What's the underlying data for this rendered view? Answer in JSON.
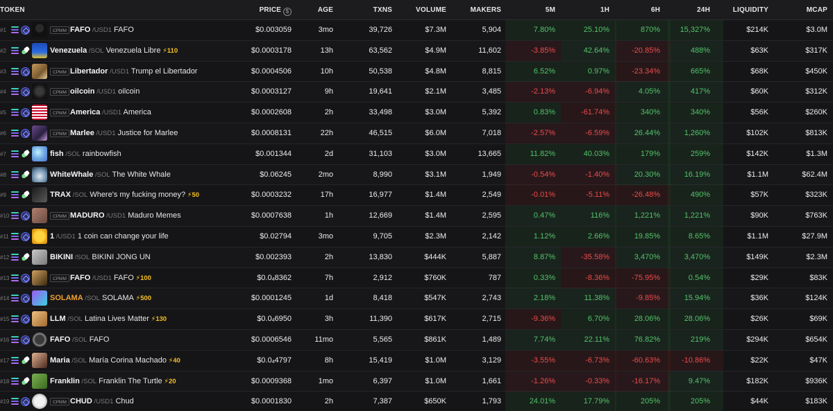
{
  "headers": {
    "token": "TOKEN",
    "price": "PRICE",
    "age": "AGE",
    "txns": "TXNS",
    "volume": "VOLUME",
    "makers": "MAKERS",
    "m5": "5M",
    "h1": "1H",
    "h6": "6H",
    "h24": "24H",
    "liquidity": "LIQUIDITY",
    "mcap": "MCAP"
  },
  "colors": {
    "positive": "#53c46a",
    "negative": "#ef4b4b",
    "boost": "#f5c023",
    "highlight_symbol": "#f0a030"
  },
  "rows": [
    {
      "rank": "#1",
      "dex": "raydium-icon",
      "cpmm": "CPMM",
      "symbol": "FAFO",
      "pair": "USD1",
      "name": "FAFO",
      "boost": "",
      "price": "$0.003059",
      "age": "3mo",
      "txns": "39,726",
      "volume": "$7.3M",
      "makers": "5,904",
      "m5": "7.80%",
      "h1": "25.10%",
      "h6": "870%",
      "h24": "15,327%",
      "liquidity": "$214K",
      "mcap": "$3.0M",
      "avatar": "fafo-hat-avatar"
    },
    {
      "rank": "#2",
      "dex": "pumpfun-icon",
      "cpmm": "",
      "symbol": "Venezuela",
      "pair": "SOL",
      "name": "Venezuela Libre",
      "boost": "110",
      "price": "$0.0003178",
      "age": "13h",
      "txns": "63,562",
      "volume": "$4.9M",
      "makers": "11,602",
      "m5": "-3.85%",
      "h1": "42.64%",
      "h6": "-20.85%",
      "h24": "488%",
      "liquidity": "$63K",
      "mcap": "$317K",
      "avatar": "venezuela-avatar"
    },
    {
      "rank": "#3",
      "dex": "raydium-icon",
      "cpmm": "CPMM",
      "symbol": "Libertador",
      "pair": "USD1",
      "name": "Trump el Libertador",
      "boost": "",
      "price": "$0.0004506",
      "age": "10h",
      "txns": "50,538",
      "volume": "$4.8M",
      "makers": "8,815",
      "m5": "6.52%",
      "h1": "0.97%",
      "h6": "-23.34%",
      "h24": "665%",
      "liquidity": "$68K",
      "mcap": "$450K",
      "avatar": "libertador-avatar"
    },
    {
      "rank": "#4",
      "dex": "raydium-icon",
      "cpmm": "CPMM",
      "symbol": "oilcoin",
      "pair": "USD1",
      "name": "oilcoin",
      "boost": "",
      "price": "$0.0003127",
      "age": "9h",
      "txns": "19,641",
      "volume": "$2.1M",
      "makers": "3,485",
      "m5": "-2.13%",
      "h1": "-6.94%",
      "h6": "4.05%",
      "h24": "417%",
      "liquidity": "$60K",
      "mcap": "$312K",
      "avatar": "oilcoin-avatar"
    },
    {
      "rank": "#5",
      "dex": "raydium-icon",
      "cpmm": "CPMM",
      "symbol": "America",
      "pair": "USD1",
      "name": "America",
      "boost": "",
      "price": "$0.0002608",
      "age": "2h",
      "txns": "33,498",
      "volume": "$3.0M",
      "makers": "5,392",
      "m5": "0.83%",
      "h1": "-61.74%",
      "h6": "340%",
      "h24": "340%",
      "liquidity": "$56K",
      "mcap": "$260K",
      "avatar": "us-flag-avatar"
    },
    {
      "rank": "#6",
      "dex": "raydium-icon",
      "cpmm": "CPMM",
      "symbol": "Marlee",
      "pair": "USD1",
      "name": "Justice for Marlee",
      "boost": "",
      "price": "$0.0008131",
      "age": "22h",
      "txns": "46,515",
      "volume": "$6.0M",
      "makers": "7,018",
      "m5": "-2.57%",
      "h1": "-6.59%",
      "h6": "26.44%",
      "h24": "1,260%",
      "liquidity": "$102K",
      "mcap": "$813K",
      "avatar": "marlee-avatar"
    },
    {
      "rank": "#7",
      "dex": "pumpfun-icon",
      "cpmm": "",
      "symbol": "fish",
      "pair": "SOL",
      "name": "rainbowfish",
      "boost": "",
      "price": "$0.001344",
      "age": "2d",
      "txns": "31,103",
      "volume": "$3.0M",
      "makers": "13,665",
      "m5": "11.82%",
      "h1": "40.03%",
      "h6": "179%",
      "h24": "259%",
      "liquidity": "$142K",
      "mcap": "$1.3M",
      "avatar": "fish-avatar"
    },
    {
      "rank": "#8",
      "dex": "pumpfun-icon",
      "cpmm": "",
      "symbol": "WhiteWhale",
      "pair": "SOL",
      "name": "The White Whale",
      "boost": "",
      "price": "$0.06245",
      "age": "2mo",
      "txns": "8,990",
      "volume": "$3.1M",
      "makers": "1,949",
      "m5": "-0.54%",
      "h1": "-1.40%",
      "h6": "20.30%",
      "h24": "16.19%",
      "liquidity": "$1.1M",
      "mcap": "$62.4M",
      "avatar": "whale-avatar"
    },
    {
      "rank": "#9",
      "dex": "pumpfun-icon",
      "cpmm": "",
      "symbol": "TRAX",
      "pair": "SOL",
      "name": "Where's my fucking money?",
      "boost": "50",
      "price": "$0.0003232",
      "age": "17h",
      "txns": "16,977",
      "volume": "$1.4M",
      "makers": "2,549",
      "m5": "-0.01%",
      "h1": "-5.11%",
      "h6": "-26.48%",
      "h24": "490%",
      "liquidity": "$57K",
      "mcap": "$323K",
      "avatar": "trax-avatar"
    },
    {
      "rank": "#10",
      "dex": "raydium-icon",
      "cpmm": "CPMM",
      "symbol": "MADURO",
      "pair": "USD1",
      "name": "Maduro Memes",
      "boost": "",
      "price": "$0.0007638",
      "age": "1h",
      "txns": "12,669",
      "volume": "$1.4M",
      "makers": "2,595",
      "m5": "0.47%",
      "h1": "116%",
      "h6": "1,221%",
      "h24": "1,221%",
      "liquidity": "$90K",
      "mcap": "$763K",
      "avatar": "maduro-avatar"
    },
    {
      "rank": "#11",
      "dex": "raydium-icon",
      "cpmm": "",
      "symbol": "1",
      "pair": "USD1",
      "name": "1 coin can change your life",
      "boost": "",
      "price": "$0.02794",
      "age": "3mo",
      "txns": "9,705",
      "volume": "$2.3M",
      "makers": "2,142",
      "m5": "1.12%",
      "h1": "2.66%",
      "h6": "19.85%",
      "h24": "8.65%",
      "liquidity": "$1.1M",
      "mcap": "$27.9M",
      "avatar": "coin-avatar"
    },
    {
      "rank": "#12",
      "dex": "pumpfun-icon",
      "cpmm": "",
      "symbol": "BIKINI",
      "pair": "SOL",
      "name": "BIKINI JONG UN",
      "boost": "",
      "price": "$0.002393",
      "age": "2h",
      "txns": "13,830",
      "volume": "$444K",
      "makers": "5,887",
      "m5": "8.87%",
      "h1": "-35.58%",
      "h6": "3,470%",
      "h24": "3,470%",
      "liquidity": "$149K",
      "mcap": "$2.3M",
      "avatar": "bikini-avatar"
    },
    {
      "rank": "#13",
      "dex": "raydium-icon",
      "cpmm": "CPMM",
      "symbol": "FAFO",
      "pair": "USD1",
      "name": "FAFO",
      "boost": "100",
      "price_pre": "$0.0",
      "price_sub": "4",
      "price_post": "8362",
      "price": "",
      "age": "7h",
      "txns": "2,912",
      "volume": "$760K",
      "makers": "787",
      "m5": "0.33%",
      "h1": "-8.36%",
      "h6": "-75.95%",
      "h24": "0.54%",
      "liquidity": "$29K",
      "mcap": "$83K",
      "avatar": "fafo2-avatar"
    },
    {
      "rank": "#14",
      "dex": "raydium-icon",
      "cpmm": "",
      "symbol": "SOLAMA",
      "pair": "SOL",
      "name": "SOLAMA",
      "boost": "500",
      "price": "$0.0001245",
      "age": "1d",
      "txns": "8,418",
      "volume": "$547K",
      "makers": "2,743",
      "m5": "2.18%",
      "h1": "11.38%",
      "h6": "-9.85%",
      "h24": "15.94%",
      "liquidity": "$36K",
      "mcap": "$124K",
      "avatar": "solama-avatar",
      "orange": true
    },
    {
      "rank": "#15",
      "dex": "raydium-icon",
      "cpmm": "",
      "symbol": "LLM",
      "pair": "SOL",
      "name": "Latina Lives Matter",
      "boost": "130",
      "price_pre": "$0.0",
      "price_sub": "4",
      "price_post": "6950",
      "price": "",
      "age": "3h",
      "txns": "11,390",
      "volume": "$617K",
      "makers": "2,715",
      "m5": "-9.36%",
      "h1": "6.70%",
      "h6": "28.06%",
      "h24": "28.06%",
      "liquidity": "$26K",
      "mcap": "$69K",
      "avatar": "llm-avatar"
    },
    {
      "rank": "#16",
      "dex": "raydium-icon",
      "cpmm": "",
      "symbol": "FAFO",
      "pair": "SOL",
      "name": "FAFO",
      "boost": "",
      "price": "$0.0006546",
      "age": "11mo",
      "txns": "5,565",
      "volume": "$861K",
      "makers": "1,489",
      "m5": "7.74%",
      "h1": "22.11%",
      "h6": "76.82%",
      "h24": "219%",
      "liquidity": "$294K",
      "mcap": "$654K",
      "avatar": "fafo-round-avatar"
    },
    {
      "rank": "#17",
      "dex": "pumpfun-icon",
      "cpmm": "",
      "symbol": "Maria",
      "pair": "SOL",
      "name": "María Corina Machado",
      "boost": "40",
      "price_pre": "$0.0",
      "price_sub": "4",
      "price_post": "4797",
      "price": "",
      "age": "8h",
      "txns": "15,419",
      "volume": "$1.0M",
      "makers": "3,129",
      "m5": "-3.55%",
      "h1": "-6.73%",
      "h6": "-60.63%",
      "h24": "-10.86%",
      "liquidity": "$22K",
      "mcap": "$47K",
      "avatar": "maria-avatar"
    },
    {
      "rank": "#18",
      "dex": "pumpfun-icon",
      "cpmm": "",
      "symbol": "Franklin",
      "pair": "SOL",
      "name": "Franklin The Turtle",
      "boost": "20",
      "price": "$0.0009368",
      "age": "1mo",
      "txns": "6,397",
      "volume": "$1.0M",
      "makers": "1,661",
      "m5": "-1.26%",
      "h1": "-0.33%",
      "h6": "-16.17%",
      "h24": "9.47%",
      "liquidity": "$182K",
      "mcap": "$936K",
      "avatar": "franklin-avatar"
    },
    {
      "rank": "#19",
      "dex": "raydium-icon",
      "cpmm": "CPMM",
      "symbol": "CHUD",
      "pair": "USD1",
      "name": "Chud",
      "boost": "",
      "price": "$0.0001830",
      "age": "2h",
      "txns": "7,387",
      "volume": "$650K",
      "makers": "1,793",
      "m5": "24.01%",
      "h1": "17.79%",
      "h6": "205%",
      "h24": "205%",
      "liquidity": "$44K",
      "mcap": "$183K",
      "avatar": "chud-avatar"
    }
  ]
}
